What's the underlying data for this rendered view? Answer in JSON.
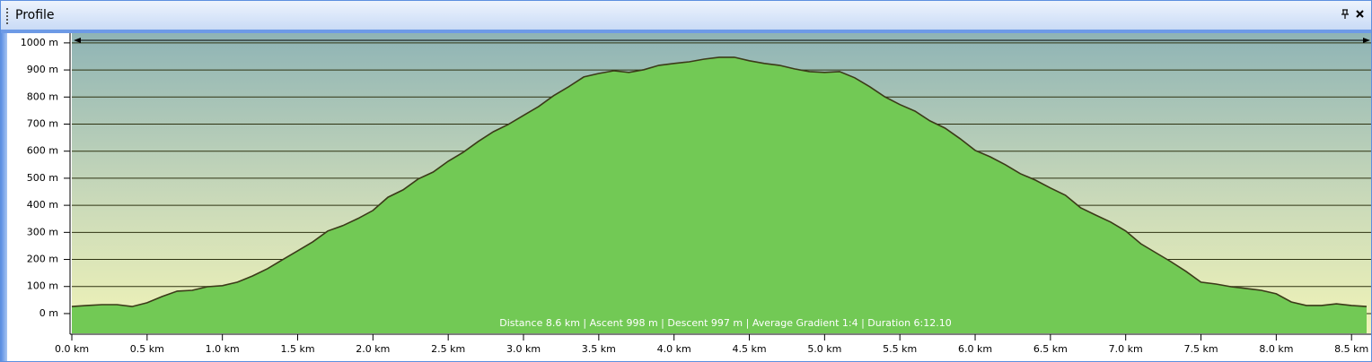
{
  "panel_title": "Profile",
  "chart_data": {
    "type": "area",
    "annotation": "Distance 8.6 km | Ascent 998 m | Descent 997 m | Average Gradient 1:4 | Duration 6:12.10",
    "x": [
      0.0,
      0.1,
      0.2,
      0.3,
      0.4,
      0.5,
      0.6,
      0.7,
      0.8,
      0.9,
      1.0,
      1.1,
      1.2,
      1.3,
      1.4,
      1.5,
      1.6,
      1.7,
      1.8,
      1.9,
      2.0,
      2.1,
      2.2,
      2.3,
      2.4,
      2.5,
      2.6,
      2.7,
      2.8,
      2.9,
      3.0,
      3.1,
      3.2,
      3.3,
      3.4,
      3.5,
      3.6,
      3.7,
      3.8,
      3.9,
      4.0,
      4.1,
      4.2,
      4.3,
      4.4,
      4.5,
      4.6,
      4.7,
      4.8,
      4.9,
      5.0,
      5.1,
      5.2,
      5.3,
      5.4,
      5.5,
      5.6,
      5.7,
      5.8,
      5.9,
      6.0,
      6.1,
      6.2,
      6.3,
      6.4,
      6.5,
      6.6,
      6.7,
      6.8,
      6.9,
      7.0,
      7.1,
      7.2,
      7.3,
      7.4,
      7.5,
      7.6,
      7.7,
      7.8,
      7.9,
      8.0,
      8.1,
      8.2,
      8.3,
      8.4,
      8.5,
      8.6
    ],
    "values": [
      26,
      30,
      33,
      33,
      26,
      40,
      63,
      83,
      86,
      99,
      103,
      116,
      139,
      166,
      199,
      232,
      265,
      305,
      325,
      351,
      381,
      430,
      457,
      497,
      523,
      563,
      596,
      636,
      672,
      699,
      732,
      765,
      805,
      838,
      874,
      887,
      897,
      891,
      901,
      917,
      924,
      930,
      940,
      947,
      947,
      934,
      924,
      917,
      904,
      894,
      891,
      894,
      871,
      838,
      801,
      772,
      748,
      712,
      685,
      646,
      603,
      579,
      550,
      517,
      493,
      464,
      437,
      391,
      364,
      338,
      305,
      258,
      225,
      192,
      156,
      116,
      109,
      99,
      93,
      86,
      73,
      43,
      30,
      30,
      36,
      30,
      26
    ],
    "color": "#72c955",
    "line_color": "#3b3a18",
    "xlim": [
      0,
      8.63
    ],
    "ylim": [
      -73,
      1036
    ],
    "xticks": [
      {
        "value": 0,
        "label": "0.0 km"
      },
      {
        "value": 0.5,
        "label": "0.5 km"
      },
      {
        "value": 1,
        "label": "1.0 km"
      },
      {
        "value": 1.5,
        "label": "1.5 km"
      },
      {
        "value": 2,
        "label": "2.0 km"
      },
      {
        "value": 2.5,
        "label": "2.5 km"
      },
      {
        "value": 3,
        "label": "3.0 km"
      },
      {
        "value": 3.5,
        "label": "3.5 km"
      },
      {
        "value": 4,
        "label": "4.0 km"
      },
      {
        "value": 4.5,
        "label": "4.5 km"
      },
      {
        "value": 5,
        "label": "5.0 km"
      },
      {
        "value": 5.5,
        "label": "5.5 km"
      },
      {
        "value": 6,
        "label": "6.0 km"
      },
      {
        "value": 6.5,
        "label": "6.5 km"
      },
      {
        "value": 7,
        "label": "7.0 km"
      },
      {
        "value": 7.5,
        "label": "7.5 km"
      },
      {
        "value": 8,
        "label": "8.0 km"
      },
      {
        "value": 8.5,
        "label": "8.5 km"
      }
    ],
    "yticks": [
      {
        "value": 0,
        "label": "0 m"
      },
      {
        "value": 100,
        "label": "100 m"
      },
      {
        "value": 200,
        "label": "200 m"
      },
      {
        "value": 300,
        "label": "300 m"
      },
      {
        "value": 400,
        "label": "400 m"
      },
      {
        "value": 500,
        "label": "500 m"
      },
      {
        "value": 600,
        "label": "600 m"
      },
      {
        "value": 700,
        "label": "700 m"
      },
      {
        "value": 800,
        "label": "800 m"
      },
      {
        "value": 900,
        "label": "900 m"
      },
      {
        "value": 1000,
        "label": "1000 m"
      }
    ],
    "grid": true
  }
}
